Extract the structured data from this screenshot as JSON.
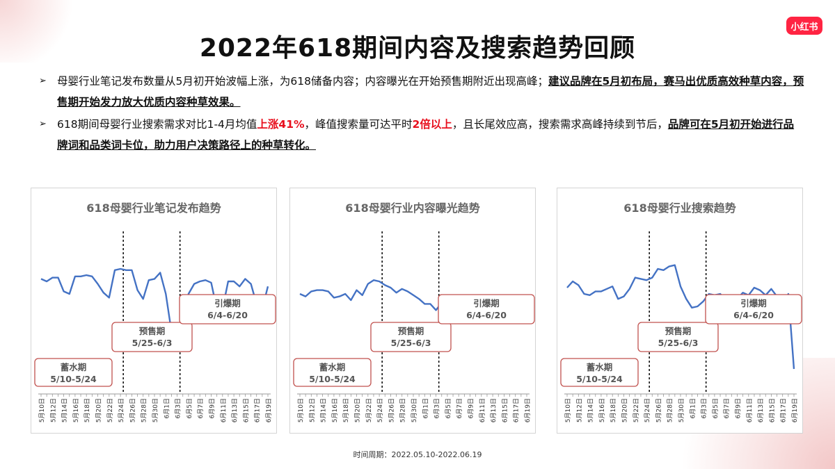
{
  "logo": {
    "text": "小红书"
  },
  "title": "2022年618期间内容及搜索趋势回顾",
  "bullets": [
    {
      "parts": [
        {
          "text": "母婴行业笔记发布数量从5月初开始波幅上涨，为618储备内容；内容曝光在开始预售期附近出现高峰；",
          "style": "normal"
        },
        {
          "text": "建议品牌在5月初布局，赛马出优质高效种草内容，预售期开始发力放大优质内容种草效果。",
          "style": "bold"
        }
      ]
    },
    {
      "parts": [
        {
          "text": "618期间母婴行业搜索需求对比1-4月均值",
          "style": "normal"
        },
        {
          "text": "上涨41%",
          "style": "red"
        },
        {
          "text": "，峰值搜索量可达平时",
          "style": "normal"
        },
        {
          "text": "2倍以上",
          "style": "red"
        },
        {
          "text": "，且长尾效应高，搜索需求高峰持续到节后，",
          "style": "normal"
        },
        {
          "text": "品牌可在5月初开始进行品牌词和品类词卡位，助力用户决策路径上的种草转化。",
          "style": "bold"
        }
      ]
    }
  ],
  "footer": "时间周期：2022.05.10-2022.06.19",
  "colors": {
    "line": "#4472c4",
    "phase_border": "#c0504d",
    "accent_red": "#e8101e",
    "logo_bg": "#ff2442"
  },
  "chart_data": [
    {
      "type": "line",
      "title": "618母婴行业笔记发布趋势",
      "x": [
        "5月10日",
        "5月11日",
        "5月12日",
        "5月13日",
        "5月14日",
        "5月15日",
        "5月16日",
        "5月17日",
        "5月18日",
        "5月19日",
        "5月20日",
        "5月21日",
        "5月22日",
        "5月23日",
        "5月24日",
        "5月25日",
        "5月26日",
        "5月27日",
        "5月28日",
        "5月29日",
        "5月30日",
        "5月31日",
        "6月1日",
        "6月2日",
        "6月3日",
        "6月4日",
        "6月5日",
        "6月6日",
        "6月7日",
        "6月8日",
        "6月9日",
        "6月10日",
        "6月11日",
        "6月12日",
        "6月13日",
        "6月14日",
        "6月15日",
        "6月16日",
        "6月17日",
        "6月18日",
        "6月19日"
      ],
      "tick_labels": [
        "5月10日",
        "5月12日",
        "5月14日",
        "5月16日",
        "5月18日",
        "5月20日",
        "5月22日",
        "5月24日",
        "5月26日",
        "5月28日",
        "5月30日",
        "6月1日",
        "6月3日",
        "6月5日",
        "6月7日",
        "6月9日",
        "6月11日",
        "6月13日",
        "6月15日",
        "6月17日",
        "6月19日"
      ],
      "values": [
        72,
        70,
        73,
        73,
        62,
        60,
        74,
        74,
        75,
        74,
        68,
        61,
        57,
        79,
        80,
        79,
        79,
        63,
        56,
        71,
        72,
        77,
        60,
        30,
        31,
        39,
        60,
        68,
        70,
        71,
        69,
        48,
        48,
        70,
        70,
        66,
        72,
        68,
        52,
        48,
        66
      ],
      "ylim": [
        0,
        100
      ],
      "phase_dividers": [
        "5月25日",
        "6月4日"
      ],
      "phases": [
        {
          "name": "蓄水期",
          "range": "5/10-5/24"
        },
        {
          "name": "预售期",
          "range": "5/25-6/3"
        },
        {
          "name": "引爆期",
          "range": "6/4-6/20"
        }
      ]
    },
    {
      "type": "line",
      "title": "618母婴行业内容曝光趋势",
      "x": [
        "5月10日",
        "5月11日",
        "5月12日",
        "5月13日",
        "5月14日",
        "5月15日",
        "5月16日",
        "5月17日",
        "5月18日",
        "5月19日",
        "5月20日",
        "5月21日",
        "5月22日",
        "5月23日",
        "5月24日",
        "5月25日",
        "5月26日",
        "5月27日",
        "5月28日",
        "5月29日",
        "5月30日",
        "5月31日",
        "6月1日",
        "6月2日",
        "6月3日",
        "6月4日",
        "6月5日",
        "6月6日",
        "6月7日",
        "6月8日",
        "6月9日",
        "6月10日",
        "6月11日",
        "6月12日",
        "6月13日",
        "6月14日",
        "6月15日",
        "6月16日",
        "6月17日",
        "6月18日",
        "6月19日"
      ],
      "tick_labels": [
        "5月10日",
        "5月12日",
        "5月14日",
        "5月16日",
        "5月18日",
        "5月20日",
        "5月22日",
        "5月24日",
        "5月26日",
        "5月28日",
        "5月30日",
        "6月1日",
        "6月3日",
        "6月5日",
        "6月7日",
        "6月9日",
        "6月11日",
        "6月13日",
        "6月15日",
        "6月17日",
        "6月19日"
      ],
      "values": [
        60,
        58,
        62,
        63,
        63,
        62,
        57,
        58,
        60,
        55,
        63,
        59,
        68,
        71,
        70,
        67,
        65,
        61,
        64,
        62,
        59,
        56,
        52,
        52,
        47,
        53,
        54,
        57,
        56,
        58,
        53,
        52,
        52,
        54,
        55,
        56,
        56,
        55,
        53,
        52,
        53
      ],
      "ylim": [
        0,
        100
      ],
      "phase_dividers": [
        "5月25日",
        "6月4日"
      ],
      "phases": [
        {
          "name": "蓄水期",
          "range": "5/10-5/24"
        },
        {
          "name": "预售期",
          "range": "5/25-6/3"
        },
        {
          "name": "引爆期",
          "range": "6/4-6/20"
        }
      ]
    },
    {
      "type": "line",
      "title": "618母婴行业搜索趋势",
      "x": [
        "5月10日",
        "5月11日",
        "5月12日",
        "5月13日",
        "5月14日",
        "5月15日",
        "5月16日",
        "5月17日",
        "5月18日",
        "5月19日",
        "5月20日",
        "5月21日",
        "5月22日",
        "5月23日",
        "5月24日",
        "5月25日",
        "5月26日",
        "5月27日",
        "5月28日",
        "5月29日",
        "5月30日",
        "5月31日",
        "6月1日",
        "6月2日",
        "6月3日",
        "6月4日",
        "6月5日",
        "6月6日",
        "6月7日",
        "6月8日",
        "6月9日",
        "6月10日",
        "6月11日",
        "6月12日",
        "6月13日",
        "6月14日",
        "6月15日",
        "6月16日",
        "6月17日",
        "6月18日",
        "6月19日"
      ],
      "tick_labels": [
        "5月10日",
        "5月12日",
        "5月14日",
        "5月16日",
        "5月18日",
        "5月20日",
        "5月22日",
        "5月24日",
        "5月26日",
        "5月28日",
        "5月30日",
        "6月1日",
        "6月3日",
        "6月5日",
        "6月7日",
        "6月9日",
        "6月11日",
        "6月13日",
        "6月15日",
        "6月17日",
        "6月19日"
      ],
      "values": [
        65,
        70,
        67,
        60,
        59,
        62,
        62,
        64,
        66,
        56,
        58,
        64,
        73,
        72,
        71,
        73,
        80,
        79,
        82,
        83,
        66,
        56,
        49,
        50,
        54,
        60,
        59,
        60,
        55,
        51,
        56,
        61,
        59,
        65,
        63,
        59,
        64,
        58,
        50,
        60,
        0
      ],
      "ylim": [
        0,
        100
      ],
      "phase_dividers": [
        "5月25日",
        "6月4日"
      ],
      "phases": [
        {
          "name": "蓄水期",
          "range": "5/10-5/24"
        },
        {
          "name": "预售期",
          "range": "5/25-6/3"
        },
        {
          "name": "引爆期",
          "range": "6/4-6/20"
        }
      ]
    }
  ]
}
